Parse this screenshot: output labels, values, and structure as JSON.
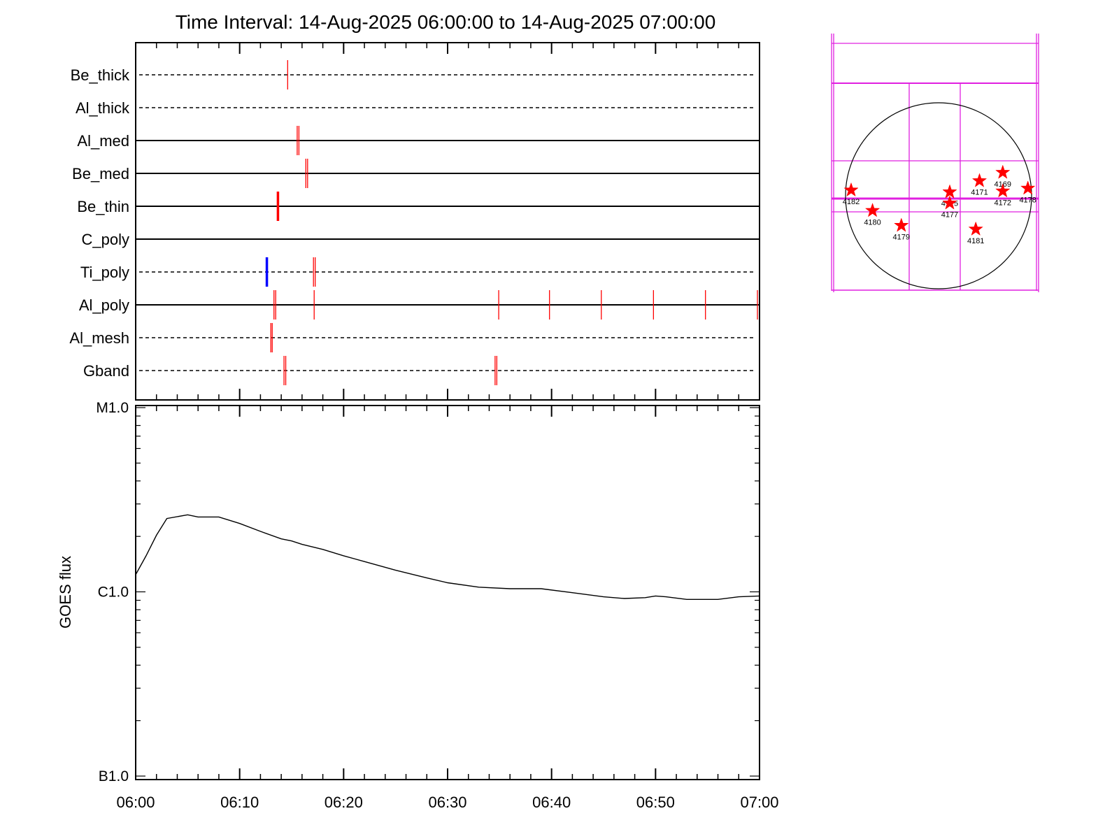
{
  "chart_data": [
    {
      "type": "timeline",
      "title": "Time Interval: 14-Aug-2025 06:00:00 to 14-Aug-2025 07:00:00",
      "x_range": [
        "06:00",
        "07:00"
      ],
      "rows": [
        {
          "name": "Be_thick",
          "line": "dashed",
          "events": [
            {
              "t": "06:14:37",
              "color": "#ff0000"
            }
          ]
        },
        {
          "name": "Al_thick",
          "line": "dashed",
          "events": []
        },
        {
          "name": "Al_med",
          "line": "solid",
          "events": [
            {
              "t": "06:15:32",
              "color": "#ff0000"
            },
            {
              "t": "06:15:42",
              "color": "#ff0000"
            }
          ]
        },
        {
          "name": "Be_med",
          "line": "solid",
          "events": [
            {
              "t": "06:16:22",
              "color": "#ff0000"
            },
            {
              "t": "06:16:32",
              "color": "#ff0000"
            }
          ]
        },
        {
          "name": "Be_thin",
          "line": "solid",
          "events": [
            {
              "t": "06:13:41",
              "color": "#ff0000",
              "bold": true
            }
          ]
        },
        {
          "name": "C_poly",
          "line": "solid",
          "events": []
        },
        {
          "name": "Ti_poly",
          "line": "dashed",
          "events": [
            {
              "t": "06:12:37",
              "color": "#0000ff",
              "bold": true
            },
            {
              "t": "06:17:06",
              "color": "#ff0000"
            },
            {
              "t": "06:17:16",
              "color": "#ff0000"
            }
          ]
        },
        {
          "name": "Al_poly",
          "line": "solid",
          "events": [
            {
              "t": "06:13:18",
              "color": "#ff0000"
            },
            {
              "t": "06:13:28",
              "color": "#ff0000"
            },
            {
              "t": "06:17:10",
              "color": "#ff0000"
            },
            {
              "t": "06:34:55",
              "color": "#ff0000"
            },
            {
              "t": "06:39:48",
              "color": "#ff0000"
            },
            {
              "t": "06:44:47",
              "color": "#ff0000"
            },
            {
              "t": "06:49:48",
              "color": "#ff0000"
            },
            {
              "t": "06:54:48",
              "color": "#ff0000"
            },
            {
              "t": "06:59:48",
              "color": "#ff0000"
            }
          ]
        },
        {
          "name": "Al_mesh",
          "line": "dashed",
          "events": [
            {
              "t": "06:13:00",
              "color": "#ff0000"
            },
            {
              "t": "06:13:08",
              "color": "#ff0000"
            }
          ]
        },
        {
          "name": "Gband",
          "line": "dashed",
          "events": [
            {
              "t": "06:14:16",
              "color": "#ff0000"
            },
            {
              "t": "06:14:26",
              "color": "#ff0000"
            },
            {
              "t": "06:34:34",
              "color": "#ff0000"
            },
            {
              "t": "06:34:44",
              "color": "#ff0000"
            }
          ]
        }
      ]
    },
    {
      "type": "line",
      "ylabel": "GOES flux",
      "yscale": "log",
      "y_ticks": [
        "B1.0",
        "C1.0",
        "M1.0"
      ],
      "ylim": [
        1e-07,
        1e-05
      ],
      "x_ticks": [
        "06:00",
        "06:10",
        "06:20",
        "06:30",
        "06:40",
        "06:50",
        "07:00"
      ],
      "xlim": [
        "06:00",
        "07:00"
      ],
      "grid": false,
      "series": [
        {
          "color": "#000000",
          "x": [
            "06:00",
            "06:01",
            "06:02",
            "06:03",
            "06:05",
            "06:06",
            "06:08",
            "06:10",
            "06:12",
            "06:14",
            "06:15",
            "06:16",
            "06:18",
            "06:20",
            "06:22",
            "06:25",
            "06:28",
            "06:30",
            "06:33",
            "06:36",
            "06:39",
            "06:42",
            "06:45",
            "06:47",
            "06:49",
            "06:50",
            "06:51",
            "06:53",
            "06:56",
            "06:58",
            "07:00"
          ],
          "y": [
            1.24e-06,
            1.57e-06,
            2.03e-06,
            2.5e-06,
            2.62e-06,
            2.55e-06,
            2.55e-06,
            2.35e-06,
            2.13e-06,
            1.94e-06,
            1.89e-06,
            1.81e-06,
            1.7e-06,
            1.57e-06,
            1.46e-06,
            1.31e-06,
            1.19e-06,
            1.12e-06,
            1.06e-06,
            1.04e-06,
            1.04e-06,
            9.9e-07,
            9.4e-07,
            9.2e-07,
            9.3e-07,
            9.5e-07,
            9.4e-07,
            9.1e-07,
            9.1e-07,
            9.4e-07,
            9.5e-07
          ]
        }
      ]
    },
    {
      "type": "scatter",
      "points": [
        {
          "label": "4182",
          "x": -0.94,
          "y": 0.06
        },
        {
          "label": "4180",
          "x": -0.71,
          "y": -0.16
        },
        {
          "label": "4179",
          "x": -0.4,
          "y": -0.32
        },
        {
          "label": "4175",
          "x": 0.12,
          "y": 0.04
        },
        {
          "label": "4177",
          "x": 0.12,
          "y": -0.08
        },
        {
          "label": "4171",
          "x": 0.44,
          "y": 0.16
        },
        {
          "label": "4169",
          "x": 0.69,
          "y": 0.25
        },
        {
          "label": "4172",
          "x": 0.69,
          "y": 0.05
        },
        {
          "label": "4178",
          "x": 0.96,
          "y": 0.08
        },
        {
          "label": "4181",
          "x": 0.4,
          "y": -0.36
        }
      ]
    }
  ]
}
